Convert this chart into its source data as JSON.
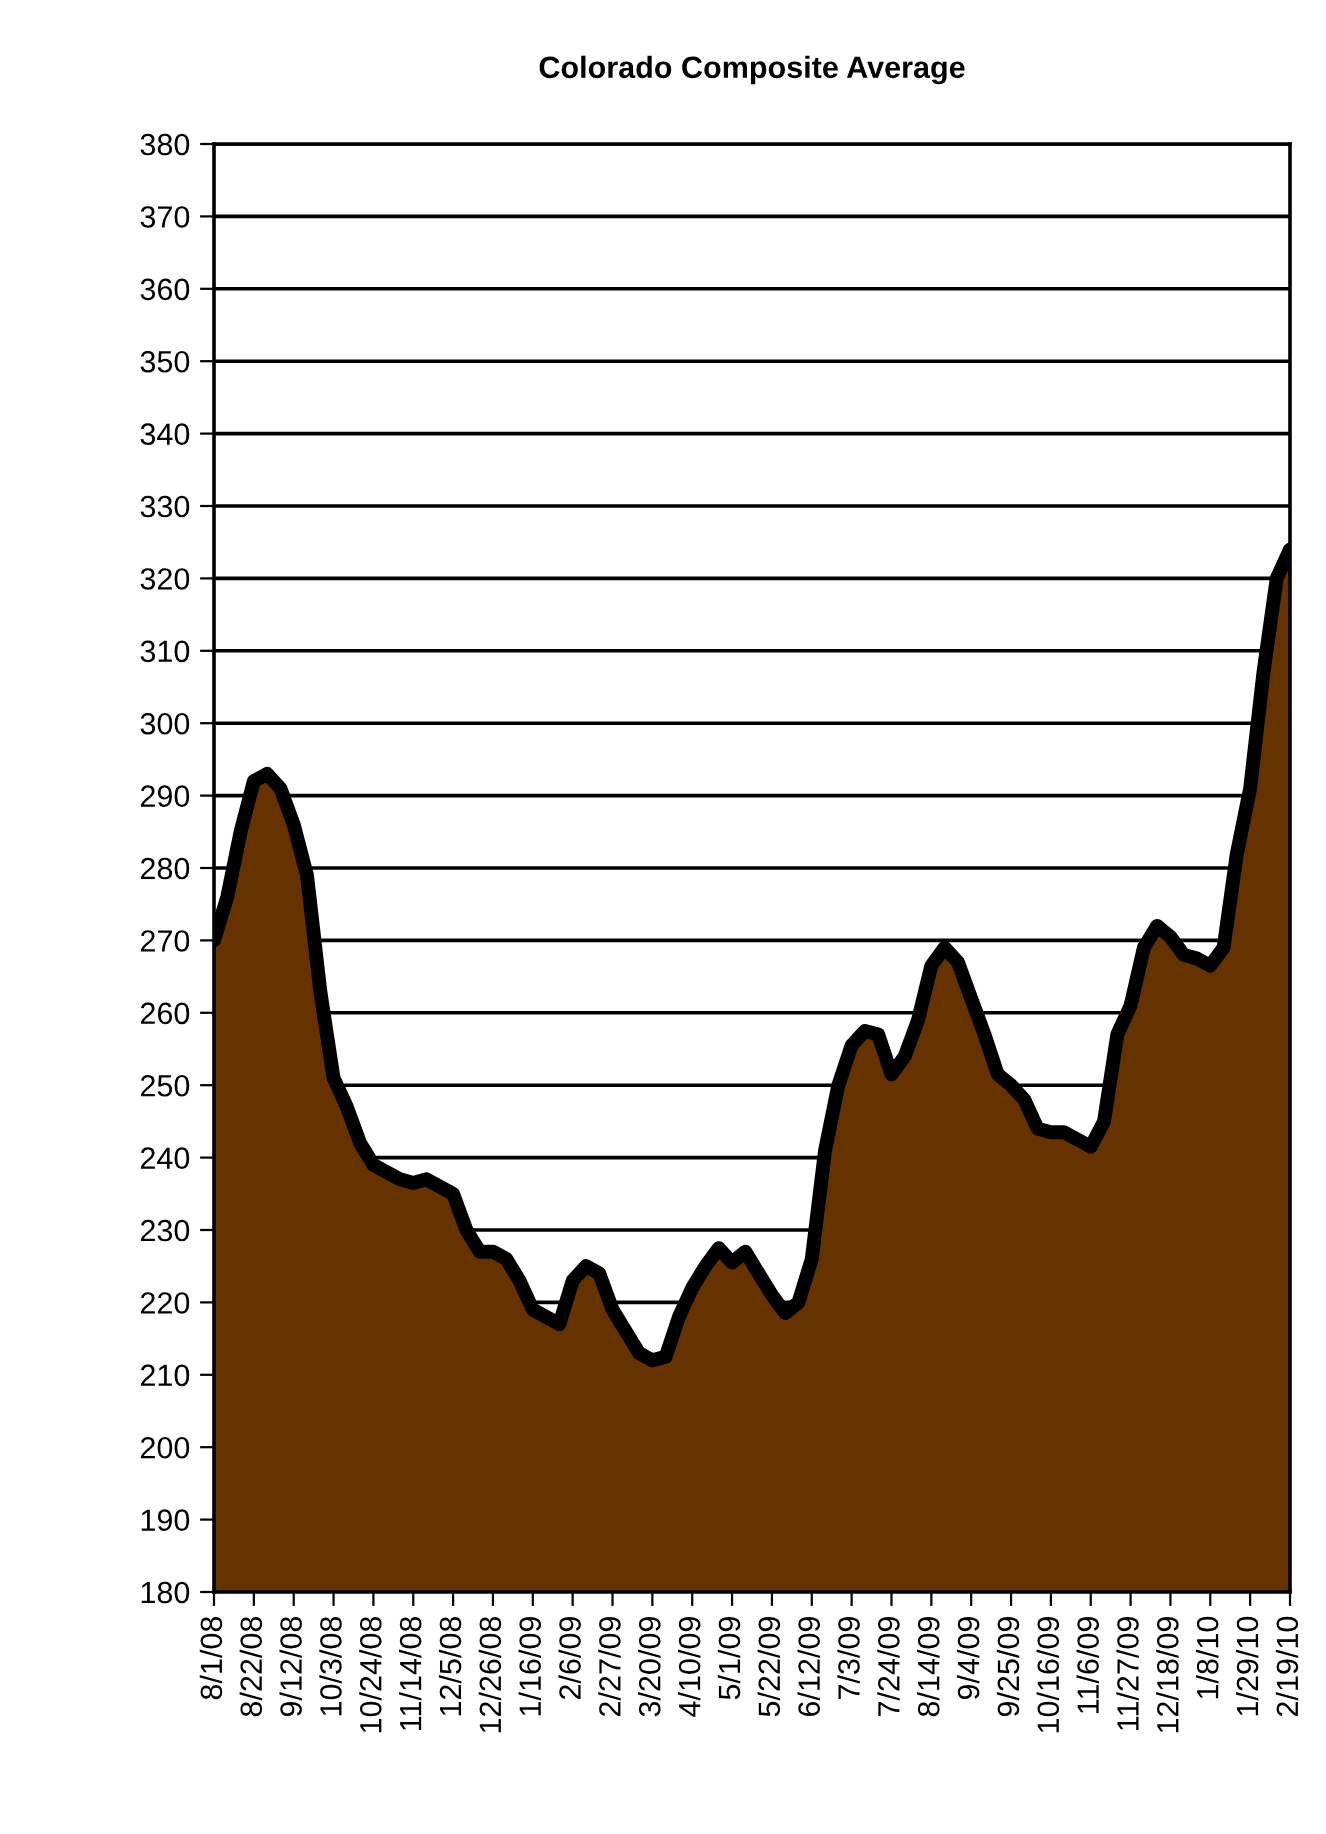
{
  "chart_data": {
    "type": "area",
    "title": "Colorado Composite Average",
    "categories": [
      "8/1/08",
      null,
      null,
      "8/22/08",
      null,
      null,
      "9/12/08",
      null,
      null,
      "10/3/08",
      null,
      null,
      "10/24/08",
      null,
      null,
      "11/14/08",
      null,
      null,
      "12/5/08",
      null,
      null,
      "12/26/08",
      null,
      null,
      "1/16/09",
      null,
      null,
      "2/6/09",
      null,
      null,
      "2/27/09",
      null,
      null,
      "3/20/09",
      null,
      null,
      "4/10/09",
      null,
      null,
      "5/1/09",
      null,
      null,
      "5/22/09",
      null,
      null,
      "6/12/09",
      null,
      null,
      "7/3/09",
      null,
      null,
      "7/24/09",
      null,
      null,
      "8/14/09",
      null,
      null,
      "9/4/09",
      null,
      null,
      "9/25/09",
      null,
      null,
      "10/16/09",
      null,
      null,
      "11/6/09",
      null,
      null,
      "11/27/09",
      null,
      null,
      "12/18/09",
      null,
      null,
      "1/8/10",
      null,
      null,
      "1/29/10",
      null,
      null,
      "2/19/10"
    ],
    "series": [
      {
        "color": "#663300",
        "values": [
          270,
          276,
          285,
          292,
          293,
          291,
          286,
          279,
          263,
          251,
          247,
          242,
          239,
          238,
          237,
          236.5,
          237,
          236,
          235,
          230,
          227,
          227,
          226,
          223,
          219,
          218,
          217,
          223,
          225,
          224,
          219,
          216,
          213,
          212,
          212.5,
          218,
          222,
          225,
          227.5,
          225.5,
          227,
          224,
          221,
          218.5,
          220,
          226,
          241,
          250,
          255.5,
          257.5,
          257,
          251.5,
          254,
          259,
          266.5,
          269,
          267,
          262,
          257,
          251.5,
          250,
          248,
          244,
          243.5,
          243.5,
          242.5,
          241.5,
          245,
          257,
          261,
          269,
          272,
          270.5,
          268,
          267.5,
          266.5,
          269,
          282,
          291,
          307,
          320,
          324
        ]
      }
    ],
    "ylim": [
      180,
      380
    ],
    "yticks": [
      180,
      190,
      200,
      210,
      220,
      230,
      240,
      250,
      260,
      270,
      280,
      290,
      300,
      310,
      320,
      330,
      340,
      350,
      360,
      370,
      380
    ],
    "grid": "y",
    "line_style": "solid",
    "marker": "none",
    "legend": false
  }
}
